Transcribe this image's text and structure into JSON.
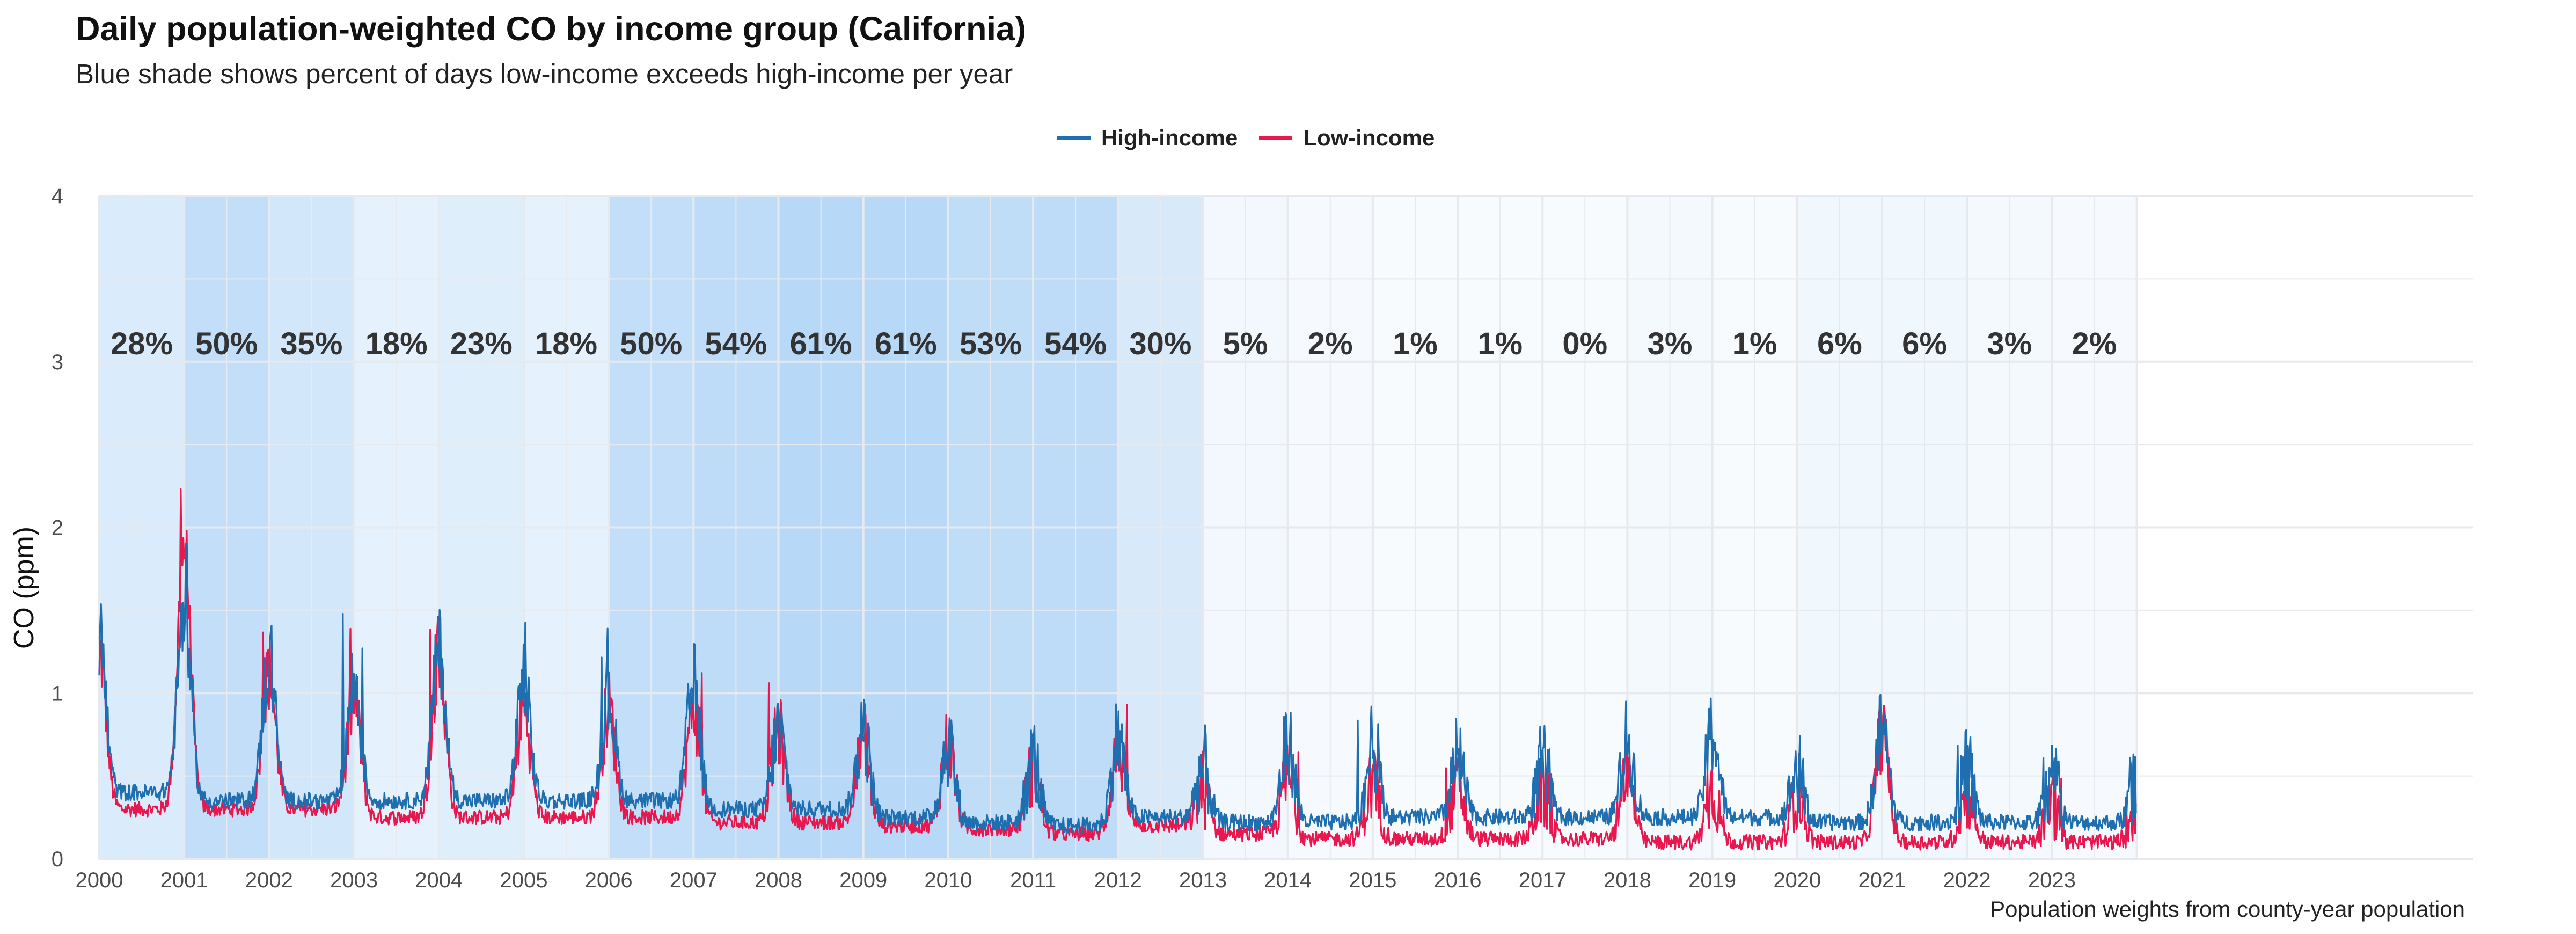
{
  "title": "Daily population-weighted CO by income group (California)",
  "subtitle": "Blue shade shows percent of days low-income exceeds high-income per year",
  "caption": "Population weights from county-year population",
  "legend": [
    {
      "label": "High-income",
      "color": "#1f6fb0"
    },
    {
      "label": "Low-income",
      "color": "#e8184f"
    }
  ],
  "chart_data": {
    "type": "line",
    "title": "Daily population-weighted CO by income group (California)",
    "subtitle": "Blue shade shows percent of days low-income exceeds high-income per year",
    "xlabel": "",
    "ylabel": "CO (ppm)",
    "ylim": [
      0,
      4
    ],
    "yticks": [
      "0",
      "1",
      "2",
      "3",
      "4"
    ],
    "xlim": [
      2000,
      2024
    ],
    "xticks": [
      "2000",
      "2001",
      "2002",
      "2003",
      "2004",
      "2005",
      "2006",
      "2007",
      "2008",
      "2009",
      "2010",
      "2011",
      "2012",
      "2013",
      "2014",
      "2015",
      "2016",
      "2017",
      "2018",
      "2019",
      "2020",
      "2021",
      "2022",
      "2023"
    ],
    "grid": true,
    "legend_position": "top",
    "annual_shading": {
      "years": [
        2000,
        2001,
        2002,
        2003,
        2004,
        2005,
        2006,
        2007,
        2008,
        2009,
        2010,
        2011,
        2012,
        2013,
        2014,
        2015,
        2016,
        2017,
        2018,
        2019,
        2020,
        2021,
        2022,
        2023
      ],
      "percent_low_exceeds_high": [
        28,
        50,
        35,
        18,
        23,
        18,
        50,
        54,
        61,
        61,
        53,
        54,
        30,
        5,
        2,
        1,
        1,
        0,
        3,
        1,
        6,
        6,
        3,
        2
      ],
      "labels": [
        "28%",
        "50%",
        "35%",
        "18%",
        "23%",
        "18%",
        "50%",
        "54%",
        "61%",
        "61%",
        "53%",
        "54%",
        "30%",
        "5%",
        "2%",
        "1%",
        "1%",
        "0%",
        "3%",
        "1%",
        "6%",
        "6%",
        "3%",
        "2%"
      ]
    },
    "series": [
      {
        "name": "High-income",
        "color": "#1f6fb0",
        "annual_winter_peak": [
          1.9,
          2.1,
          1.7,
          1.5,
          1.8,
          1.5,
          1.4,
          1.5,
          1.1,
          1.1,
          1.0,
          0.85,
          1.05,
          0.8,
          1.0,
          0.95,
          0.85,
          0.8,
          1.0,
          1.1,
          0.75,
          1.12,
          0.75,
          0.7
        ],
        "annual_summer_min": [
          0.4,
          0.35,
          0.35,
          0.35,
          0.35,
          0.35,
          0.35,
          0.3,
          0.3,
          0.25,
          0.22,
          0.2,
          0.25,
          0.22,
          0.22,
          0.25,
          0.25,
          0.25,
          0.25,
          0.25,
          0.22,
          0.22,
          0.22,
          0.22
        ]
      },
      {
        "name": "Low-income",
        "color": "#e8184f",
        "annual_winter_peak": [
          1.8,
          2.7,
          1.6,
          1.4,
          1.7,
          1.3,
          1.3,
          1.3,
          1.1,
          1.0,
          1.0,
          0.8,
          0.95,
          0.6,
          0.7,
          0.65,
          0.65,
          0.6,
          0.7,
          0.6,
          0.6,
          1.1,
          0.6,
          0.5
        ],
        "annual_summer_min": [
          0.3,
          0.3,
          0.3,
          0.25,
          0.25,
          0.25,
          0.25,
          0.22,
          0.22,
          0.2,
          0.18,
          0.15,
          0.2,
          0.15,
          0.12,
          0.12,
          0.12,
          0.12,
          0.1,
          0.1,
          0.1,
          0.1,
          0.1,
          0.1
        ]
      }
    ]
  }
}
